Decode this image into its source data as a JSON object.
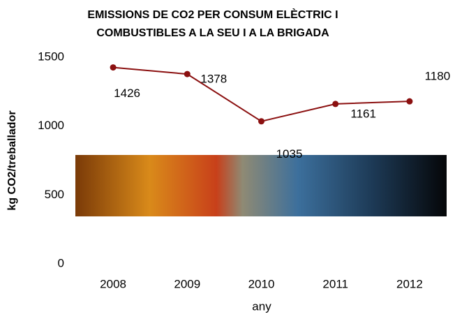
{
  "chart_data": {
    "type": "line",
    "title": [
      "EMISSIONS DE CO2 PER CONSUM ELÈCTRIC I",
      "COMBUSTIBLES A LA SEU I A LA BRIGADA"
    ],
    "categories": [
      "2008",
      "2009",
      "2010",
      "2011",
      "2012"
    ],
    "values": [
      1426,
      1378,
      1035,
      1161,
      1180
    ],
    "color": "#8b1010",
    "ylim": [
      0,
      1500
    ],
    "yticks": [
      0,
      500,
      1000,
      1500
    ],
    "ylabel": "kg CO2/treballador",
    "xlabel": "any"
  }
}
